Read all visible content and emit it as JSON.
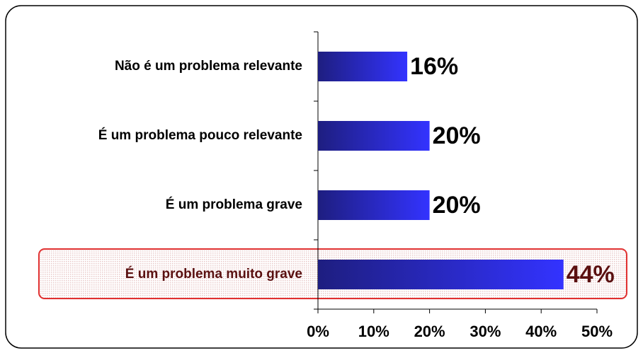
{
  "chart_data": {
    "type": "barh",
    "categories": [
      "Não é um problema relevante",
      "É um problema pouco relevante",
      "É um problema grave",
      "É um problema muito grave"
    ],
    "values": [
      16,
      20,
      20,
      44
    ],
    "value_labels": [
      "16%",
      "20%",
      "20%",
      "44%"
    ],
    "color": "#3333ff",
    "highlight": 3,
    "xlim": [
      0,
      50
    ],
    "xticks": [
      {
        "value": 0,
        "label": "0%"
      },
      {
        "value": 10,
        "label": "10%"
      },
      {
        "value": 20,
        "label": "20%"
      },
      {
        "value": 30,
        "label": "30%"
      },
      {
        "value": 40,
        "label": "40%"
      },
      {
        "value": 50,
        "label": "50%"
      }
    ]
  }
}
